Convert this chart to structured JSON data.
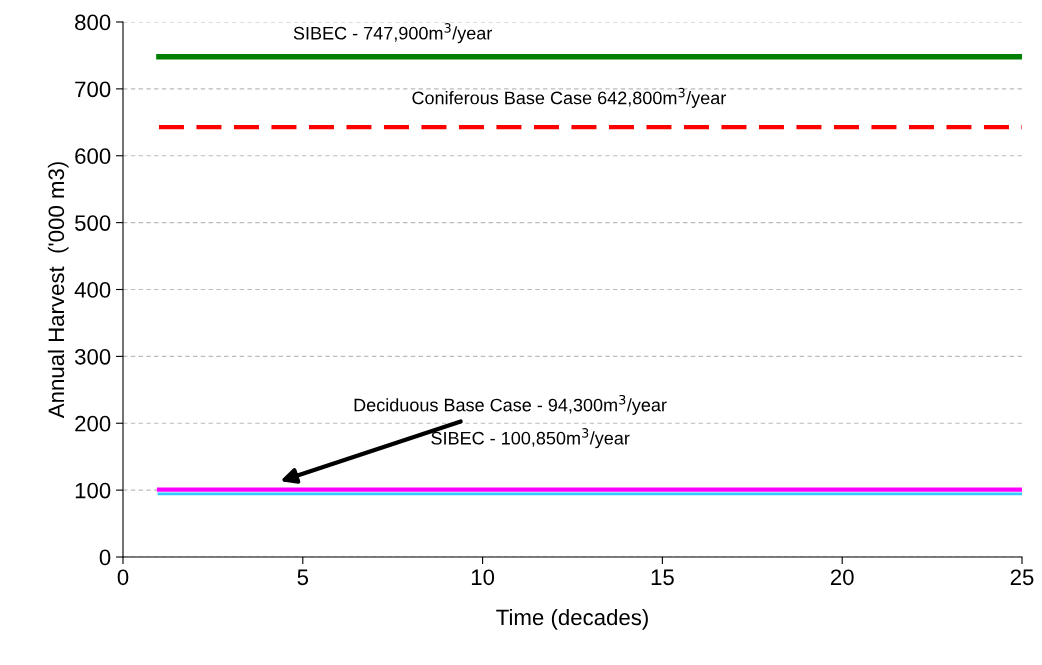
{
  "chart_data": {
    "type": "line",
    "xlabel": "Time (decades)",
    "ylabel": "Annual Harvest  ('000 m3)",
    "x": [
      1,
      25
    ],
    "xlim": [
      0,
      25
    ],
    "xticks": [
      0,
      5,
      10,
      15,
      20,
      25
    ],
    "ylim": [
      0,
      800
    ],
    "yticks": [
      0,
      100,
      200,
      300,
      400,
      500,
      600,
      700,
      800
    ],
    "grid": "y",
    "marker": "none",
    "series": [
      {
        "color": "#008000",
        "values": [
          747.9,
          747.9
        ],
        "line_style": "solid"
      },
      {
        "color": "#ff0000",
        "values": [
          642.8,
          642.8
        ],
        "line_style": "dashed"
      },
      {
        "color": "#33ccff",
        "values": [
          94.3,
          94.3
        ],
        "line_style": "solid"
      },
      {
        "color": "#ff00ff",
        "values": [
          100.85,
          100.85
        ],
        "line_style": "solid"
      }
    ],
    "annotations": [
      {
        "text": "SIBEC - 747,900m$^{3}$/year",
        "x": 7.5,
        "y": 747.9
      },
      {
        "text": "Coniferous Base Case 642,800m$^{3}$/year",
        "x": 12.4,
        "y": 642.8
      },
      "Deciduous Base Case - 94,300m$^{3}$/year",
      "SIBEC - 100,850m$^{3}$/year"
    ]
  }
}
